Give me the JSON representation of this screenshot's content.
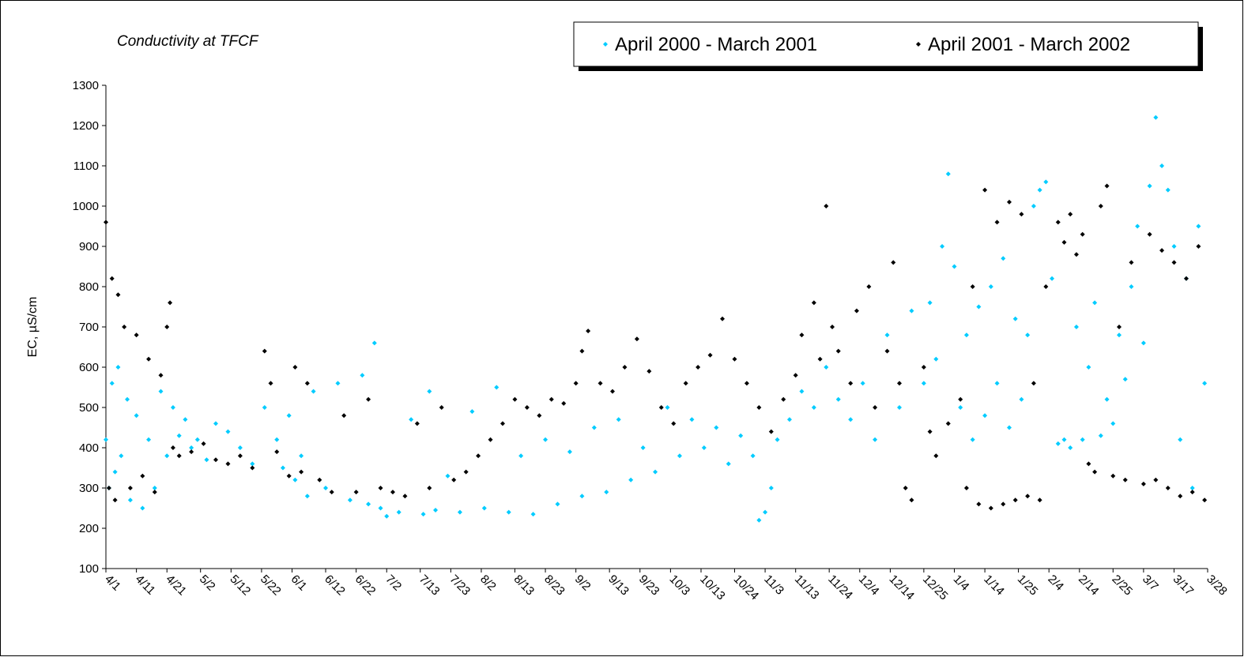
{
  "chart_data": {
    "type": "scatter",
    "title": "Conductivity at TFCF",
    "y_label": "EC, µS/cm",
    "legend_position": "top-right",
    "grid": false,
    "xlim": [
      0,
      361
    ],
    "xticks": [
      {
        "value": 0,
        "label": "4/1"
      },
      {
        "value": 10,
        "label": "4/11"
      },
      {
        "value": 20,
        "label": "4/21"
      },
      {
        "value": 31,
        "label": "5/2"
      },
      {
        "value": 41,
        "label": "5/12"
      },
      {
        "value": 51,
        "label": "5/22"
      },
      {
        "value": 61,
        "label": "6/1"
      },
      {
        "value": 72,
        "label": "6/12"
      },
      {
        "value": 82,
        "label": "6/22"
      },
      {
        "value": 92,
        "label": "7/2"
      },
      {
        "value": 103,
        "label": "7/13"
      },
      {
        "value": 113,
        "label": "7/23"
      },
      {
        "value": 123,
        "label": "8/2"
      },
      {
        "value": 134,
        "label": "8/13"
      },
      {
        "value": 144,
        "label": "8/23"
      },
      {
        "value": 154,
        "label": "9/2"
      },
      {
        "value": 165,
        "label": "9/13"
      },
      {
        "value": 175,
        "label": "9/23"
      },
      {
        "value": 185,
        "label": "10/3"
      },
      {
        "value": 195,
        "label": "10/13"
      },
      {
        "value": 206,
        "label": "10/24"
      },
      {
        "value": 216,
        "label": "11/3"
      },
      {
        "value": 226,
        "label": "11/13"
      },
      {
        "value": 237,
        "label": "11/24"
      },
      {
        "value": 247,
        "label": "12/4"
      },
      {
        "value": 257,
        "label": "12/14"
      },
      {
        "value": 268,
        "label": "12/25"
      },
      {
        "value": 278,
        "label": "1/4"
      },
      {
        "value": 288,
        "label": "1/14"
      },
      {
        "value": 299,
        "label": "1/25"
      },
      {
        "value": 309,
        "label": "2/4"
      },
      {
        "value": 319,
        "label": "2/14"
      },
      {
        "value": 330,
        "label": "2/25"
      },
      {
        "value": 340,
        "label": "3/7"
      },
      {
        "value": 350,
        "label": "3/17"
      },
      {
        "value": 361,
        "label": "3/28"
      }
    ],
    "ylim": [
      100,
      1300
    ],
    "yticks": [
      100,
      200,
      300,
      400,
      500,
      600,
      700,
      800,
      900,
      1000,
      1100,
      1200,
      1300
    ],
    "series": [
      {
        "name": "April 2000 - March 2001",
        "color": "#00ccff",
        "x": [
          0,
          1,
          2,
          3,
          4,
          5,
          7,
          8,
          10,
          12,
          14,
          16,
          18,
          20,
          22,
          24,
          26,
          28,
          30,
          33,
          36,
          40,
          44,
          48,
          52,
          56,
          58,
          60,
          62,
          64,
          66,
          68,
          72,
          76,
          80,
          84,
          86,
          88,
          90,
          92,
          96,
          100,
          104,
          106,
          108,
          112,
          116,
          120,
          124,
          128,
          132,
          136,
          140,
          144,
          148,
          152,
          156,
          160,
          164,
          168,
          172,
          176,
          180,
          184,
          188,
          192,
          196,
          200,
          204,
          208,
          212,
          214,
          216,
          218,
          220,
          224,
          228,
          232,
          236,
          240,
          244,
          248,
          252,
          256,
          260,
          264,
          268,
          270,
          272,
          274,
          276,
          278,
          280,
          282,
          284,
          286,
          288,
          290,
          292,
          294,
          296,
          298,
          300,
          302,
          304,
          306,
          308,
          310,
          312,
          314,
          316,
          318,
          320,
          322,
          324,
          326,
          328,
          330,
          332,
          334,
          336,
          338,
          340,
          342,
          344,
          346,
          348,
          350,
          352,
          354,
          356,
          358,
          360
        ],
        "values": [
          420,
          300,
          560,
          340,
          600,
          380,
          520,
          270,
          480,
          250,
          420,
          300,
          540,
          380,
          500,
          430,
          470,
          400,
          420,
          370,
          460,
          440,
          400,
          360,
          500,
          420,
          350,
          480,
          320,
          380,
          280,
          540,
          300,
          560,
          270,
          580,
          260,
          660,
          250,
          230,
          240,
          470,
          235,
          540,
          245,
          330,
          240,
          490,
          250,
          550,
          240,
          380,
          235,
          420,
          260,
          390,
          280,
          450,
          290,
          470,
          320,
          400,
          340,
          500,
          380,
          470,
          400,
          450,
          360,
          430,
          380,
          220,
          240,
          300,
          420,
          470,
          540,
          500,
          600,
          520,
          470,
          560,
          420,
          680,
          500,
          740,
          560,
          760,
          620,
          900,
          1080,
          850,
          500,
          680,
          420,
          750,
          480,
          800,
          560,
          870,
          450,
          720,
          520,
          680,
          1000,
          1040,
          1060,
          820,
          410,
          420,
          400,
          700,
          420,
          600,
          760,
          430,
          520,
          460,
          680,
          570,
          800,
          950,
          660,
          1050,
          1220,
          1100,
          1040,
          900,
          420,
          820,
          300,
          950,
          560
        ]
      },
      {
        "name": "April 2001 - March 2002",
        "color": "#000000",
        "x": [
          0,
          1,
          2,
          3,
          4,
          6,
          8,
          10,
          12,
          14,
          16,
          18,
          20,
          21,
          22,
          24,
          28,
          32,
          36,
          40,
          44,
          48,
          52,
          54,
          56,
          60,
          62,
          64,
          66,
          70,
          74,
          78,
          82,
          86,
          90,
          94,
          98,
          102,
          106,
          110,
          114,
          118,
          122,
          126,
          130,
          134,
          138,
          142,
          146,
          150,
          154,
          156,
          158,
          162,
          166,
          170,
          174,
          178,
          182,
          186,
          190,
          194,
          198,
          202,
          206,
          210,
          214,
          218,
          222,
          226,
          228,
          232,
          234,
          236,
          238,
          240,
          244,
          246,
          250,
          252,
          256,
          258,
          260,
          262,
          264,
          268,
          270,
          272,
          276,
          280,
          282,
          284,
          286,
          288,
          290,
          292,
          294,
          296,
          298,
          300,
          302,
          304,
          306,
          308,
          312,
          314,
          316,
          318,
          320,
          322,
          324,
          326,
          328,
          330,
          332,
          334,
          336,
          340,
          342,
          344,
          346,
          348,
          350,
          352,
          354,
          356,
          358,
          360
        ],
        "values": [
          960,
          300,
          820,
          270,
          780,
          700,
          300,
          680,
          330,
          620,
          290,
          580,
          700,
          760,
          400,
          380,
          390,
          410,
          370,
          360,
          380,
          350,
          640,
          560,
          390,
          330,
          600,
          340,
          560,
          320,
          290,
          480,
          290,
          520,
          300,
          290,
          280,
          460,
          300,
          500,
          320,
          340,
          380,
          420,
          460,
          520,
          500,
          480,
          520,
          510,
          560,
          640,
          690,
          560,
          540,
          600,
          670,
          590,
          500,
          460,
          560,
          600,
          630,
          720,
          620,
          560,
          500,
          440,
          520,
          580,
          680,
          760,
          620,
          1000,
          700,
          640,
          560,
          740,
          800,
          500,
          640,
          860,
          560,
          300,
          270,
          600,
          440,
          380,
          460,
          520,
          300,
          800,
          260,
          1040,
          250,
          960,
          260,
          1010,
          270,
          980,
          280,
          560,
          270,
          800,
          960,
          910,
          980,
          880,
          930,
          360,
          340,
          1000,
          1050,
          330,
          700,
          320,
          860,
          310,
          930,
          320,
          890,
          300,
          860,
          280,
          820,
          290,
          900,
          270
        ]
      }
    ]
  }
}
